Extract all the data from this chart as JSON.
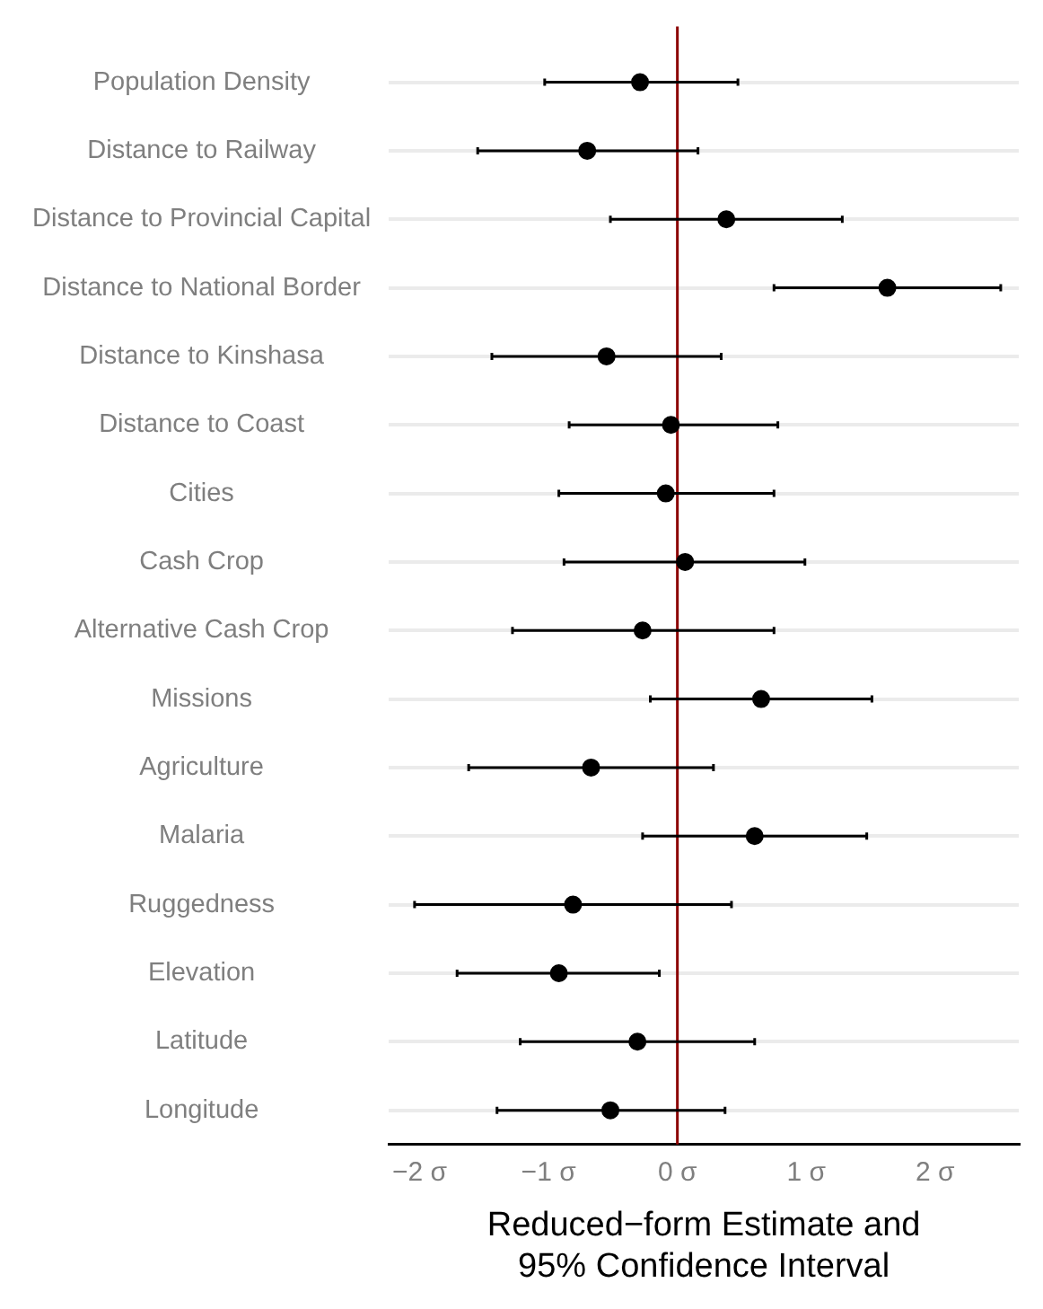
{
  "chart_data": {
    "type": "scatter",
    "orientation": "horizontal",
    "xlabel": "Reduced−form Estimate and\n95% Confidence Interval",
    "categories": [
      "Population Density",
      "Distance to Railway",
      "Distance to Provincial Capital",
      "Distance to National Border",
      "Distance to Kinshasa",
      "Distance to Coast",
      "Cities",
      "Cash Crop",
      "Alternative Cash Crop",
      "Missions",
      "Agriculture",
      "Malaria",
      "Ruggedness",
      "Elevation",
      "Latitude",
      "Longitude"
    ],
    "series": [
      {
        "color": "#000000",
        "values": [
          -0.29,
          -0.7,
          0.38,
          1.63,
          -0.55,
          -0.05,
          -0.09,
          0.06,
          -0.27,
          0.65,
          -0.67,
          0.6,
          -0.81,
          -0.92,
          -0.31,
          -0.52
        ],
        "errors": [
          [
            -1.03,
            0.47
          ],
          [
            -1.55,
            0.16
          ],
          [
            -0.52,
            1.28
          ],
          [
            0.75,
            2.51
          ],
          [
            -1.44,
            0.34
          ],
          [
            -0.84,
            0.78
          ],
          [
            -0.92,
            0.75
          ],
          [
            -0.88,
            0.99
          ],
          [
            -1.28,
            0.75
          ],
          [
            -0.21,
            1.51
          ],
          [
            -1.62,
            0.28
          ],
          [
            -0.27,
            1.47
          ],
          [
            -2.04,
            0.42
          ],
          [
            -1.71,
            -0.14
          ],
          [
            -1.22,
            0.6
          ],
          [
            -1.4,
            0.37
          ]
        ]
      }
    ],
    "xlim": [
      -2.24,
      2.65
    ],
    "xticks": [
      {
        "value": -2,
        "label": "−2 σ"
      },
      {
        "value": -1,
        "label": "−1 σ"
      },
      {
        "value": 0,
        "label": "0 σ"
      },
      {
        "value": 1,
        "label": "1 σ"
      },
      {
        "value": 2,
        "label": "2 σ"
      }
    ],
    "ref_lines": [
      {
        "axis": "x",
        "value": 0,
        "color": "#8b0000"
      }
    ],
    "grid": "y",
    "legend": false,
    "marker": "circle"
  }
}
